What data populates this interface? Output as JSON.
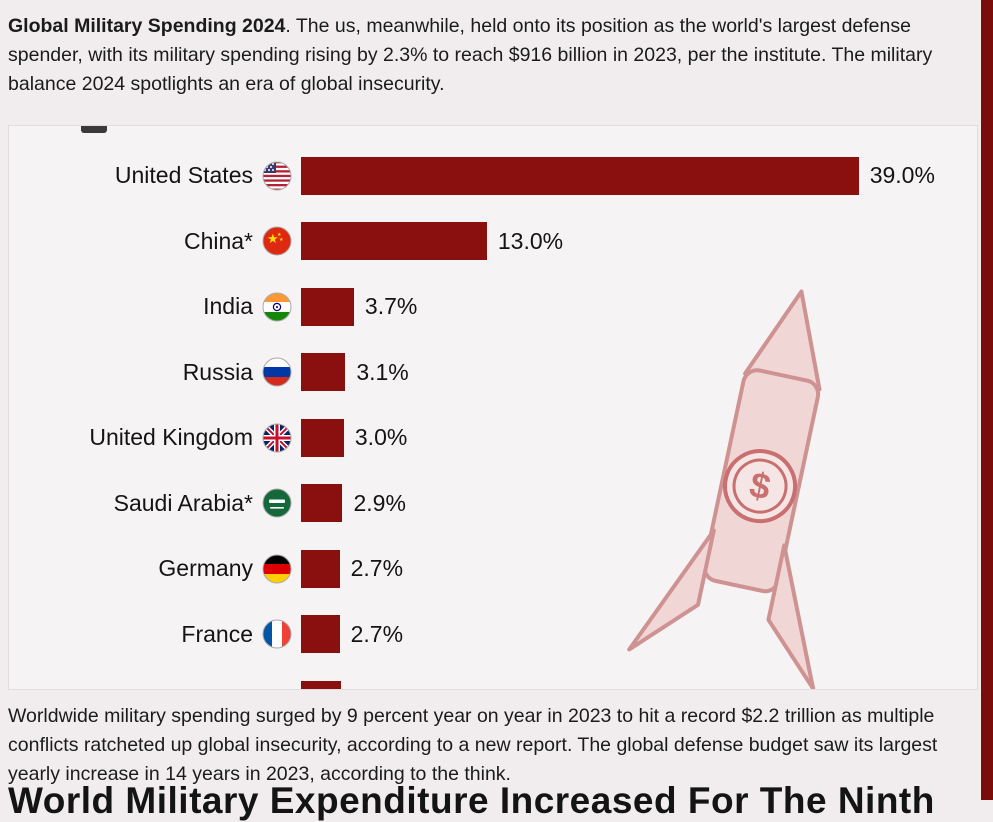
{
  "colors": {
    "page_bg": "#f1edee",
    "chart_bg": "#f6f3f4",
    "bar": "#8a0f0f",
    "right_strip": "#7a0c0c",
    "missile_fill": "#f1d6d6",
    "missile_stroke": "#cf9292"
  },
  "intro": {
    "bold": "Global Military Spending 2024",
    "rest": ". The us, meanwhile, held onto its position as the world's largest defense spender, with its military spending rising by 2.3% to reach $916 billion in 2023, per the institute. The military balance 2024 spotlights an era of global insecurity."
  },
  "chart_data": {
    "type": "bar",
    "orientation": "horizontal",
    "categories": [
      "United States",
      "China*",
      "India",
      "Russia",
      "United Kingdom",
      "Saudi Arabia*",
      "Germany",
      "France"
    ],
    "values": [
      39.0,
      13.0,
      3.7,
      3.1,
      3.0,
      2.9,
      2.7,
      2.7
    ],
    "value_labels": [
      "39.0%",
      "13.0%",
      "3.7%",
      "3.1%",
      "3.0%",
      "2.9%",
      "2.7%",
      "2.7%"
    ],
    "flags": [
      "us",
      "cn",
      "in",
      "ru",
      "gb",
      "sa",
      "de",
      "fr"
    ],
    "bar_color": "#8a0f0f",
    "partial_extra_bar": true,
    "partial_extra_bar_value": 2.8,
    "legend": "none",
    "grid": "off"
  },
  "outro": "Worldwide military spending surged by 9 percent year on year in 2023 to hit a record $2.2 trillion as multiple conflicts ratcheted up global insecurity, according to a new report. The global defense budget saw its largest yearly increase in 14 years in 2023, according to the think.",
  "cropped_heading": "World Military Expenditure Increased For The Ninth"
}
